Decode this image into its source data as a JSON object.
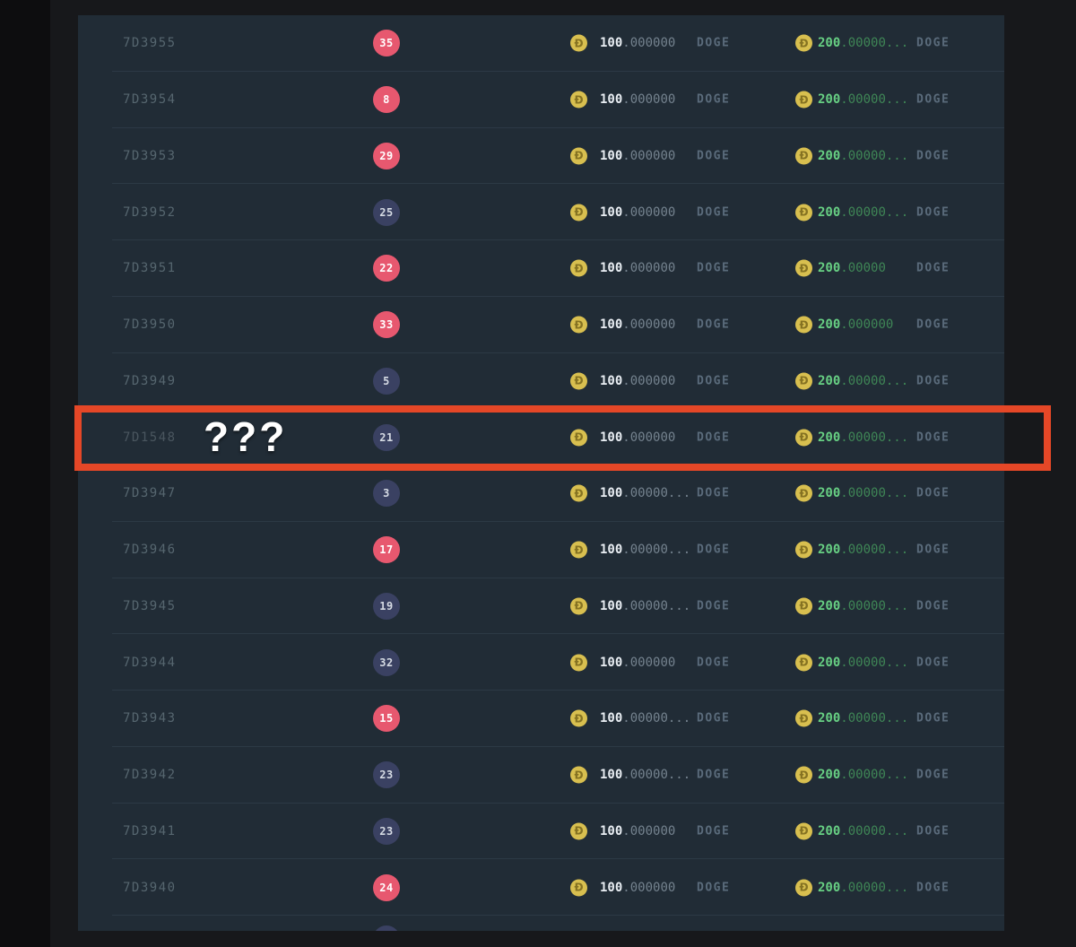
{
  "page": {
    "background": "#17181b"
  },
  "table": {
    "background": "#212c36",
    "divider_color": "#2c3945"
  },
  "colors": {
    "badge_red": "#e7586f",
    "badge_dark": "#3a4162",
    "coin_gold": "#d8bf4f",
    "bet_integer": "#e9eef3",
    "bet_decimals": "#74828e",
    "payout_integer": "#67cf83",
    "payout_decimals": "#3f8656",
    "currency_label": "#5a6b7b",
    "bet_id": "#56666f",
    "highlight_border": "#e54727"
  },
  "coin_letter": "Ð",
  "annotation": {
    "question_marks": "???"
  },
  "rows": [
    {
      "id": "7D3955",
      "lucky_number": "35",
      "badge_color": "red",
      "bet_int": "100",
      "bet_dec": ".000000",
      "bet_unit": "DOGE",
      "payout_int": "200",
      "payout_dec": ".00000...",
      "payout_unit": "DOGE",
      "highlighted": false
    },
    {
      "id": "7D3954",
      "lucky_number": "8",
      "badge_color": "red",
      "bet_int": "100",
      "bet_dec": ".000000",
      "bet_unit": "DOGE",
      "payout_int": "200",
      "payout_dec": ".00000...",
      "payout_unit": "DOGE",
      "highlighted": false
    },
    {
      "id": "7D3953",
      "lucky_number": "29",
      "badge_color": "red",
      "bet_int": "100",
      "bet_dec": ".000000",
      "bet_unit": "DOGE",
      "payout_int": "200",
      "payout_dec": ".00000...",
      "payout_unit": "DOGE",
      "highlighted": false
    },
    {
      "id": "7D3952",
      "lucky_number": "25",
      "badge_color": "dark",
      "bet_int": "100",
      "bet_dec": ".000000",
      "bet_unit": "DOGE",
      "payout_int": "200",
      "payout_dec": ".00000...",
      "payout_unit": "DOGE",
      "highlighted": false
    },
    {
      "id": "7D3951",
      "lucky_number": "22",
      "badge_color": "red",
      "bet_int": "100",
      "bet_dec": ".000000",
      "bet_unit": "DOGE",
      "payout_int": "200",
      "payout_dec": ".00000",
      "payout_unit": "DOGE",
      "highlighted": false
    },
    {
      "id": "7D3950",
      "lucky_number": "33",
      "badge_color": "red",
      "bet_int": "100",
      "bet_dec": ".000000",
      "bet_unit": "DOGE",
      "payout_int": "200",
      "payout_dec": ".000000",
      "payout_unit": "DOGE",
      "highlighted": false
    },
    {
      "id": "7D3949",
      "lucky_number": "5",
      "badge_color": "dark",
      "bet_int": "100",
      "bet_dec": ".000000",
      "bet_unit": "DOGE",
      "payout_int": "200",
      "payout_dec": ".00000...",
      "payout_unit": "DOGE",
      "highlighted": false
    },
    {
      "id": "7D1548",
      "lucky_number": "21",
      "badge_color": "dark",
      "bet_int": "100",
      "bet_dec": ".000000",
      "bet_unit": "DOGE",
      "payout_int": "200",
      "payout_dec": ".00000...",
      "payout_unit": "DOGE",
      "highlighted": true
    },
    {
      "id": "7D3947",
      "lucky_number": "3",
      "badge_color": "dark",
      "bet_int": "100",
      "bet_dec": ".00000...",
      "bet_unit": "DOGE",
      "payout_int": "200",
      "payout_dec": ".00000...",
      "payout_unit": "DOGE",
      "highlighted": false
    },
    {
      "id": "7D3946",
      "lucky_number": "17",
      "badge_color": "red",
      "bet_int": "100",
      "bet_dec": ".00000...",
      "bet_unit": "DOGE",
      "payout_int": "200",
      "payout_dec": ".00000...",
      "payout_unit": "DOGE",
      "highlighted": false
    },
    {
      "id": "7D3945",
      "lucky_number": "19",
      "badge_color": "dark",
      "bet_int": "100",
      "bet_dec": ".00000...",
      "bet_unit": "DOGE",
      "payout_int": "200",
      "payout_dec": ".00000...",
      "payout_unit": "DOGE",
      "highlighted": false
    },
    {
      "id": "7D3944",
      "lucky_number": "32",
      "badge_color": "dark",
      "bet_int": "100",
      "bet_dec": ".000000",
      "bet_unit": "DOGE",
      "payout_int": "200",
      "payout_dec": ".00000...",
      "payout_unit": "DOGE",
      "highlighted": false
    },
    {
      "id": "7D3943",
      "lucky_number": "15",
      "badge_color": "red",
      "bet_int": "100",
      "bet_dec": ".00000...",
      "bet_unit": "DOGE",
      "payout_int": "200",
      "payout_dec": ".00000...",
      "payout_unit": "DOGE",
      "highlighted": false
    },
    {
      "id": "7D3942",
      "lucky_number": "23",
      "badge_color": "dark",
      "bet_int": "100",
      "bet_dec": ".00000...",
      "bet_unit": "DOGE",
      "payout_int": "200",
      "payout_dec": ".00000...",
      "payout_unit": "DOGE",
      "highlighted": false
    },
    {
      "id": "7D3941",
      "lucky_number": "23",
      "badge_color": "dark",
      "bet_int": "100",
      "bet_dec": ".000000",
      "bet_unit": "DOGE",
      "payout_int": "200",
      "payout_dec": ".00000...",
      "payout_unit": "DOGE",
      "highlighted": false
    },
    {
      "id": "7D3940",
      "lucky_number": "24",
      "badge_color": "red",
      "bet_int": "100",
      "bet_dec": ".000000",
      "bet_unit": "DOGE",
      "payout_int": "200",
      "payout_dec": ".00000...",
      "payout_unit": "DOGE",
      "highlighted": false
    }
  ],
  "partial_row": {
    "badge_color": "dark"
  }
}
